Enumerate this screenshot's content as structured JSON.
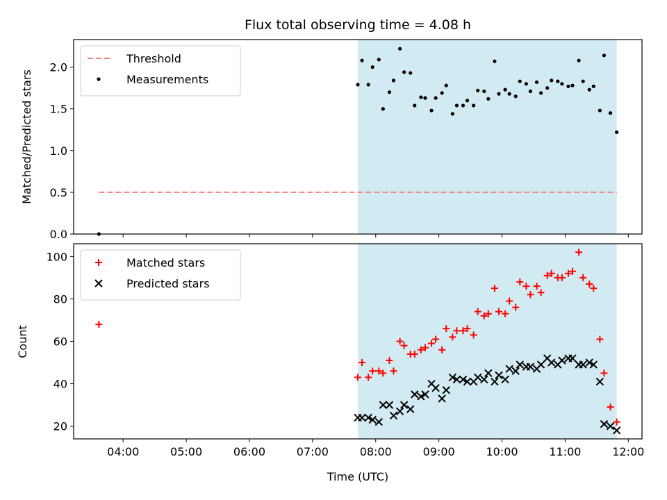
{
  "title": "Flux total observing time = 4.08 h",
  "chart_data": [
    {
      "type": "scatter",
      "title": "Flux total observing time = 4.08 h",
      "xlabel": "",
      "ylabel": "Matched/Predicted stars",
      "xlim": [
        "03:13",
        "12:13"
      ],
      "ylim": [
        0,
        2.33
      ],
      "yticks": [
        "0.0",
        "0.5",
        "1.0",
        "1.5",
        "2.0"
      ],
      "xticks_labeled": false,
      "legend_position": "top-left",
      "shaded_span": {
        "start": "07:43",
        "end": "11:49",
        "color": "#add8e6"
      },
      "threshold": {
        "name": "Threshold",
        "value": 0.5,
        "x_start": "03:37",
        "x_end": "11:49",
        "color": "#f08080",
        "style": "dashed"
      },
      "series": [
        {
          "name": "Measurements",
          "marker": "dot",
          "color": "#000000",
          "x": [
            "03:37",
            "07:43",
            "07:47",
            "07:53",
            "07:57",
            "08:03",
            "08:07",
            "08:13",
            "08:17",
            "08:23",
            "08:27",
            "08:33",
            "08:37",
            "08:43",
            "08:47",
            "08:53",
            "08:57",
            "09:03",
            "09:07",
            "09:13",
            "09:17",
            "09:23",
            "09:27",
            "09:33",
            "09:37",
            "09:43",
            "09:47",
            "09:53",
            "09:57",
            "10:03",
            "10:07",
            "10:13",
            "10:17",
            "10:23",
            "10:27",
            "10:33",
            "10:37",
            "10:43",
            "10:47",
            "10:53",
            "10:57",
            "11:03",
            "11:07",
            "11:13",
            "11:17",
            "11:23",
            "11:27",
            "11:33",
            "11:37",
            "11:43",
            "11:49"
          ],
          "y": [
            0.0,
            1.79,
            2.08,
            1.79,
            2.0,
            2.09,
            1.5,
            1.7,
            1.84,
            2.22,
            1.94,
            1.93,
            1.54,
            1.64,
            1.63,
            1.48,
            1.63,
            1.69,
            1.78,
            1.44,
            1.54,
            1.54,
            1.6,
            1.54,
            1.72,
            1.71,
            1.62,
            2.07,
            1.68,
            1.73,
            1.68,
            1.65,
            1.83,
            1.8,
            1.71,
            1.82,
            1.69,
            1.75,
            1.84,
            1.83,
            1.8,
            1.77,
            1.78,
            2.08,
            1.83,
            1.73,
            1.77,
            1.48,
            2.14,
            1.45,
            1.22
          ]
        }
      ]
    },
    {
      "type": "scatter",
      "title": "",
      "xlabel": "Time (UTC)",
      "ylabel": "Count",
      "xlim": [
        "03:13",
        "12:13"
      ],
      "ylim": [
        14,
        106
      ],
      "xticks": [
        "04:00",
        "05:00",
        "06:00",
        "07:00",
        "08:00",
        "09:00",
        "10:00",
        "11:00",
        "12:00"
      ],
      "yticks": [
        "20",
        "40",
        "60",
        "80",
        "100"
      ],
      "legend_position": "top-left",
      "shaded_span": {
        "start": "07:43",
        "end": "11:49",
        "color": "#add8e6"
      },
      "series": [
        {
          "name": "Matched stars",
          "marker": "plus",
          "color": "#ff0000",
          "x": [
            "03:37",
            "07:43",
            "07:47",
            "07:53",
            "07:57",
            "08:03",
            "08:07",
            "08:13",
            "08:17",
            "08:23",
            "08:27",
            "08:33",
            "08:37",
            "08:43",
            "08:47",
            "08:53",
            "08:57",
            "09:03",
            "09:07",
            "09:13",
            "09:17",
            "09:23",
            "09:27",
            "09:33",
            "09:37",
            "09:43",
            "09:47",
            "09:53",
            "09:57",
            "10:03",
            "10:07",
            "10:13",
            "10:17",
            "10:23",
            "10:27",
            "10:33",
            "10:37",
            "10:43",
            "10:47",
            "10:53",
            "10:57",
            "11:03",
            "11:07",
            "11:13",
            "11:17",
            "11:23",
            "11:27",
            "11:33",
            "11:37",
            "11:43",
            "11:49"
          ],
          "y": [
            68,
            43,
            50,
            43,
            46,
            46,
            45,
            51,
            46,
            60,
            58,
            54,
            54,
            56,
            57,
            59,
            61,
            56,
            66,
            62,
            65,
            65,
            66,
            63,
            74,
            72,
            73,
            85,
            74,
            73,
            79,
            76,
            88,
            86,
            82,
            86,
            83,
            91,
            92,
            90,
            90,
            92,
            93,
            102,
            90,
            87,
            85,
            61,
            45,
            29,
            22
          ]
        },
        {
          "name": "Predicted stars",
          "marker": "x",
          "color": "#000000",
          "x": [
            "07:43",
            "07:47",
            "07:53",
            "07:57",
            "08:03",
            "08:07",
            "08:13",
            "08:17",
            "08:23",
            "08:27",
            "08:33",
            "08:37",
            "08:43",
            "08:47",
            "08:53",
            "08:57",
            "09:03",
            "09:07",
            "09:13",
            "09:17",
            "09:23",
            "09:27",
            "09:33",
            "09:37",
            "09:43",
            "09:47",
            "09:53",
            "09:57",
            "10:03",
            "10:07",
            "10:13",
            "10:17",
            "10:23",
            "10:27",
            "10:33",
            "10:37",
            "10:43",
            "10:47",
            "10:53",
            "10:57",
            "11:03",
            "11:07",
            "11:13",
            "11:17",
            "11:23",
            "11:27",
            "11:33",
            "11:37",
            "11:43",
            "11:49"
          ],
          "y": [
            24,
            24,
            24,
            23,
            22,
            30,
            30,
            25,
            27,
            30,
            28,
            35,
            34,
            35,
            40,
            38,
            33,
            37,
            43,
            42,
            42,
            41,
            41,
            43,
            42,
            45,
            41,
            44,
            42,
            47,
            46,
            49,
            48,
            48,
            47,
            49,
            52,
            50,
            49,
            51,
            52,
            52,
            49,
            49,
            50,
            49,
            41,
            21,
            20,
            18
          ]
        }
      ]
    }
  ]
}
